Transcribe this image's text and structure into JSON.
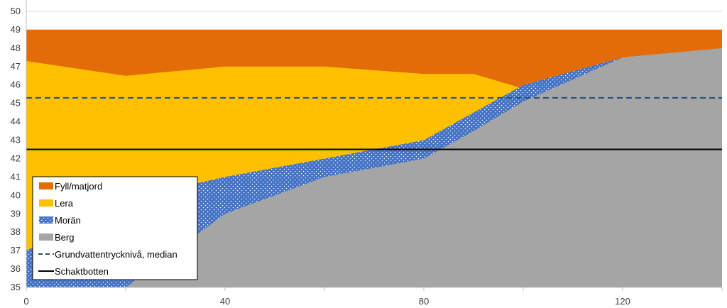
{
  "chart_data": {
    "type": "area",
    "title": "",
    "xlabel": "",
    "ylabel": "",
    "xlim": [
      0,
      140
    ],
    "ylim": [
      35,
      50
    ],
    "x_ticks": [
      0,
      40,
      80,
      120
    ],
    "x_minor_ticks": [
      20,
      60,
      100,
      140
    ],
    "y_ticks": [
      35,
      36,
      37,
      38,
      39,
      40,
      41,
      42,
      43,
      44,
      45,
      46,
      47,
      48,
      49,
      50
    ],
    "grid": "horizontal",
    "legend_position": "bottom-left",
    "layers": [
      {
        "name": "Berg",
        "color": "#a5a5a5",
        "pattern": "solid",
        "points": [
          [
            0,
            35
          ],
          [
            20,
            35
          ],
          [
            40,
            39
          ],
          [
            60,
            41
          ],
          [
            80,
            42
          ],
          [
            90,
            43.5
          ],
          [
            100,
            45.1
          ],
          [
            120,
            47.5
          ],
          [
            140,
            48
          ]
        ]
      },
      {
        "name": "Morän",
        "color": "#4472c4",
        "pattern": "dotted",
        "points": [
          [
            0,
            37
          ],
          [
            20,
            39.8
          ],
          [
            40,
            41
          ],
          [
            60,
            42
          ],
          [
            80,
            43
          ],
          [
            90,
            44.5
          ],
          [
            100,
            46
          ],
          [
            120,
            47.5
          ],
          [
            140,
            48
          ]
        ]
      },
      {
        "name": "Lera",
        "color": "#ffc000",
        "pattern": "solid",
        "points": [
          [
            0,
            47.3
          ],
          [
            20,
            46.5
          ],
          [
            40,
            47
          ],
          [
            60,
            47
          ],
          [
            80,
            46.6
          ],
          [
            90,
            46.6
          ],
          [
            100,
            45.8
          ],
          [
            120,
            47.5
          ],
          [
            140,
            48
          ]
        ]
      },
      {
        "name": "Fyll/matjord",
        "color": "#e36c09",
        "pattern": "solid",
        "points": [
          [
            0,
            49
          ],
          [
            140,
            49
          ]
        ]
      }
    ],
    "lines": [
      {
        "name": "Grundvattentrycknivå, median",
        "color": "#1f4e79",
        "style": "dashed",
        "y": 45.3
      },
      {
        "name": "Schaktbotten",
        "color": "#000000",
        "style": "solid",
        "y": 42.5
      }
    ],
    "legend": [
      {
        "label": "Fyll/matjord",
        "type": "fill",
        "color": "#e36c09",
        "pattern": "solid"
      },
      {
        "label": "Lera",
        "type": "fill",
        "color": "#ffc000",
        "pattern": "solid"
      },
      {
        "label": "Morän",
        "type": "fill",
        "color": "#4472c4",
        "pattern": "dotted"
      },
      {
        "label": "Berg",
        "type": "fill",
        "color": "#a5a5a5",
        "pattern": "solid"
      },
      {
        "label": "Grundvattentrycknivå, median",
        "type": "line",
        "color": "#1f4e79",
        "style": "dashed"
      },
      {
        "label": "Schaktbotten",
        "type": "line",
        "color": "#000000",
        "style": "solid"
      }
    ]
  }
}
